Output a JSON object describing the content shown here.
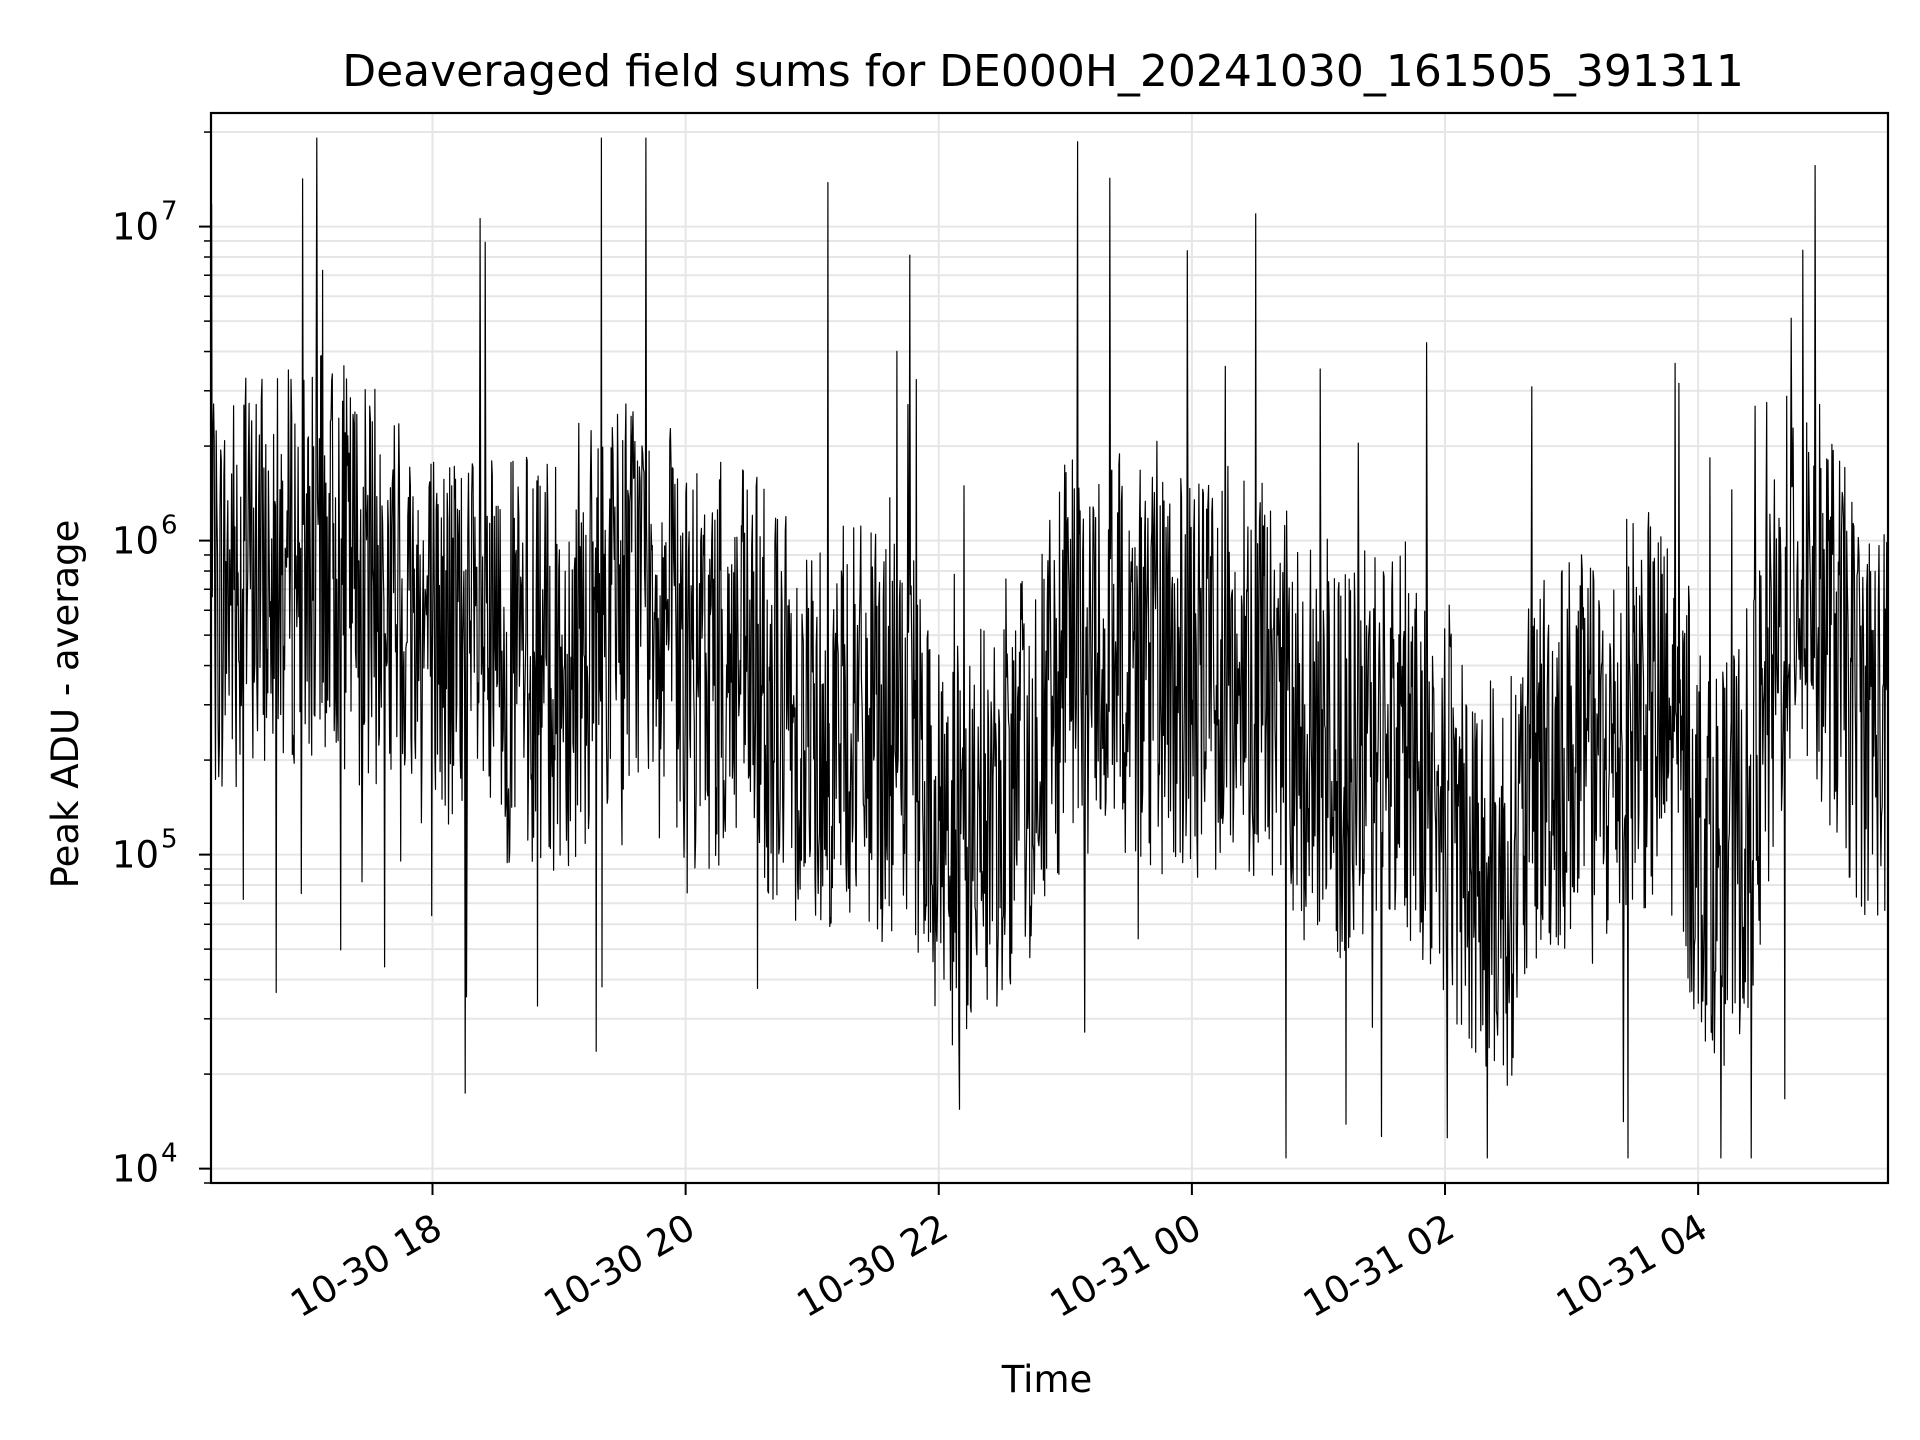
{
  "chart_data": {
    "type": "line",
    "title": "Deaveraged field sums for DE000H_20241030_161505_391311",
    "xlabel": "Time",
    "ylabel": "Peak ADU - average",
    "yscale": "log",
    "ylim": [
      9000,
      23000000
    ],
    "xlim": [
      "2024-10-30 16:15",
      "2024-10-31 05:30"
    ],
    "x_ticks": [
      {
        "label": "10-30 18",
        "time": "2024-10-30 18:00"
      },
      {
        "label": "10-30 20",
        "time": "2024-10-30 20:00"
      },
      {
        "label": "10-30 22",
        "time": "2024-10-30 22:00"
      },
      {
        "label": "10-31 00",
        "time": "2024-10-31 00:00"
      },
      {
        "label": "10-31 02",
        "time": "2024-10-31 02:00"
      },
      {
        "label": "10-31 04",
        "time": "2024-10-31 04:00"
      }
    ],
    "y_ticks": [
      {
        "base": "10",
        "exp": "4",
        "value": 10000
      },
      {
        "base": "10",
        "exp": "5",
        "value": 100000
      },
      {
        "base": "10",
        "exp": "6",
        "value": 1000000
      },
      {
        "base": "10",
        "exp": "7",
        "value": 10000000
      }
    ],
    "grid": true,
    "line_color": "#000000",
    "grid_color": "#e6e6e6",
    "series": [
      {
        "x": [
          "2024-10-30 16:15",
          "2024-10-30 16:30",
          "2024-10-30 16:45",
          "2024-10-30 17:00",
          "2024-10-30 17:15",
          "2024-10-30 17:30",
          "2024-10-30 17:45",
          "2024-10-30 18:00",
          "2024-10-30 18:15",
          "2024-10-30 18:30",
          "2024-10-30 18:45",
          "2024-10-30 19:00",
          "2024-10-30 19:15",
          "2024-10-30 19:30",
          "2024-10-30 19:45",
          "2024-10-30 20:00",
          "2024-10-30 20:15",
          "2024-10-30 20:30",
          "2024-10-30 20:45",
          "2024-10-30 21:00",
          "2024-10-30 21:15",
          "2024-10-30 21:30",
          "2024-10-30 21:45",
          "2024-10-30 22:00",
          "2024-10-30 22:15",
          "2024-10-30 22:30",
          "2024-10-30 22:45",
          "2024-10-30 23:00",
          "2024-10-30 23:15",
          "2024-10-30 23:30",
          "2024-10-30 23:45",
          "2024-10-31 00:00",
          "2024-10-31 00:15",
          "2024-10-31 00:30",
          "2024-10-31 00:45",
          "2024-10-31 01:00",
          "2024-10-31 01:15",
          "2024-10-31 01:30",
          "2024-10-31 01:45",
          "2024-10-31 02:00",
          "2024-10-31 02:15",
          "2024-10-31 02:30",
          "2024-10-31 02:45",
          "2024-10-31 03:00",
          "2024-10-31 03:15",
          "2024-10-31 03:30",
          "2024-10-31 03:45",
          "2024-10-31 04:00",
          "2024-10-31 04:15",
          "2024-10-31 04:30",
          "2024-10-31 04:45",
          "2024-10-31 05:00",
          "2024-10-31 05:15",
          "2024-10-31 05:30"
        ],
        "values": [
          600000,
          800000,
          750000,
          900000,
          850000,
          700000,
          650000,
          500000,
          450000,
          400000,
          420000,
          380000,
          500000,
          700000,
          800000,
          350000,
          400000,
          380000,
          300000,
          250000,
          260000,
          240000,
          220000,
          120000,
          110000,
          140000,
          200000,
          400000,
          450000,
          420000,
          380000,
          350000,
          420000,
          380000,
          300000,
          180000,
          200000,
          250000,
          220000,
          150000,
          90000,
          80000,
          200000,
          220000,
          180000,
          300000,
          250000,
          120000,
          90000,
          200000,
          900000,
          600000,
          300000,
          250000
        ]
      }
    ]
  }
}
